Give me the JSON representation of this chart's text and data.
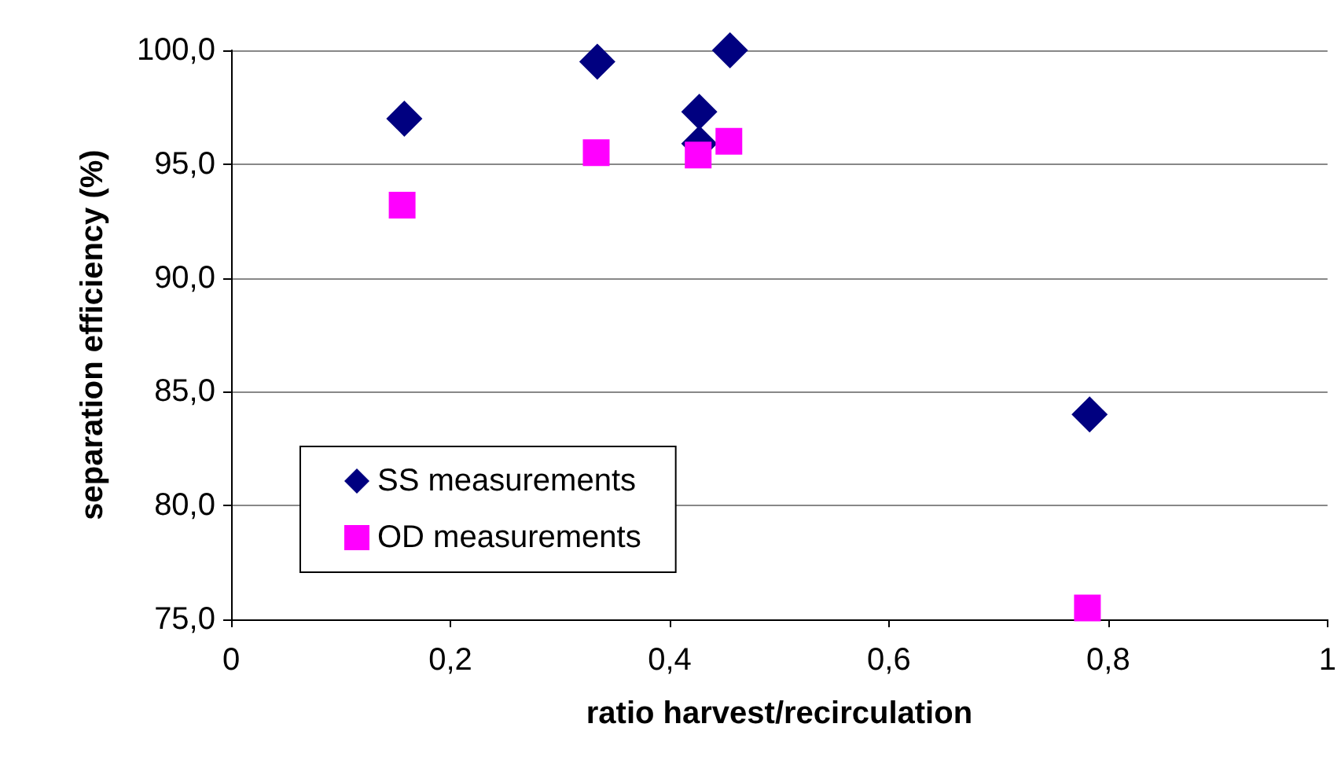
{
  "chart_data": {
    "type": "scatter",
    "xlabel": "ratio harvest/recirculation",
    "ylabel": "separation efficiency (%)",
    "xlim": [
      0,
      1
    ],
    "xticks": [
      0,
      {
        "value": 0.2,
        "label": "0,2"
      },
      {
        "value": 0.4,
        "label": "0,4"
      },
      {
        "value": 0.6,
        "label": "0,6"
      },
      {
        "value": 0.8,
        "label": "0,8"
      },
      1
    ],
    "ylim": [
      75,
      100
    ],
    "yticks": [
      {
        "value": 75,
        "label": "75,0"
      },
      {
        "value": 80,
        "label": "80,0"
      },
      {
        "value": 85,
        "label": "85,0"
      },
      {
        "value": 90,
        "label": "90,0"
      },
      {
        "value": 95,
        "label": "95,0"
      },
      {
        "value": 100,
        "label": "100,0"
      }
    ],
    "grid": "y",
    "legend": "bottom left",
    "series": [
      {
        "name": "SS measurements",
        "color": "#000080",
        "marker": "diamond",
        "x": [
          0.158,
          0.334,
          0.427,
          0.427,
          0.455,
          0.783
        ],
        "values": [
          97.0,
          99.5,
          97.3,
          95.9,
          100.0,
          84.0
        ]
      },
      {
        "name": "OD measurements",
        "color": "#ff00ff",
        "marker": "square",
        "x": [
          0.156,
          0.333,
          0.426,
          0.454,
          0.781
        ],
        "values": [
          93.2,
          95.5,
          95.4,
          96.0,
          75.5
        ]
      }
    ]
  }
}
